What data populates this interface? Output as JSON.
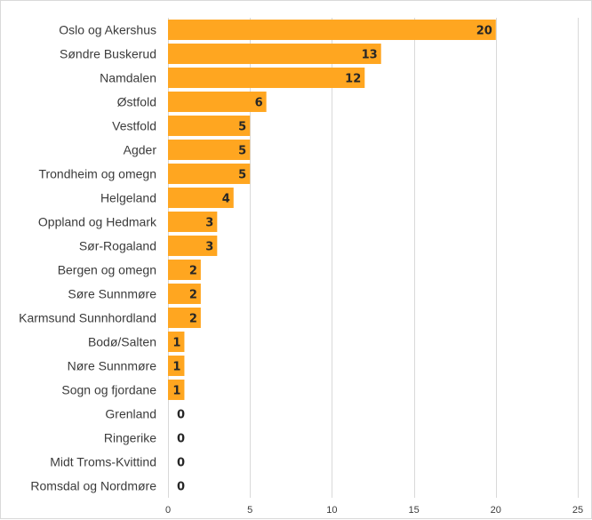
{
  "chart_data": {
    "type": "bar",
    "orientation": "horizontal",
    "categories": [
      "Oslo og Akershus",
      "Søndre Buskerud",
      "Namdalen",
      "Østfold",
      "Vestfold",
      "Agder",
      "Trondheim og omegn",
      "Helgeland",
      "Oppland og Hedmark",
      "Sør-Rogaland",
      "Bergen og omegn",
      "Søre Sunnmøre",
      "Karmsund Sunnhordland",
      "Bodø/Salten",
      "Nøre Sunnmøre",
      "Sogn og fjordane",
      "Grenland",
      "Ringerike",
      "Midt Troms-Kvittind",
      "Romsdal og Nordmøre"
    ],
    "values": [
      20,
      13,
      12,
      6,
      5,
      5,
      5,
      4,
      3,
      3,
      2,
      2,
      2,
      1,
      1,
      1,
      0,
      0,
      0,
      0
    ],
    "title": "",
    "xlabel": "",
    "ylabel": "",
    "xlim": [
      0,
      25
    ],
    "xticks": [
      0,
      5,
      10,
      15,
      20,
      25
    ],
    "grid": "vertical",
    "legend": "none",
    "bar_color": "#ffa620",
    "data_labels": true
  }
}
